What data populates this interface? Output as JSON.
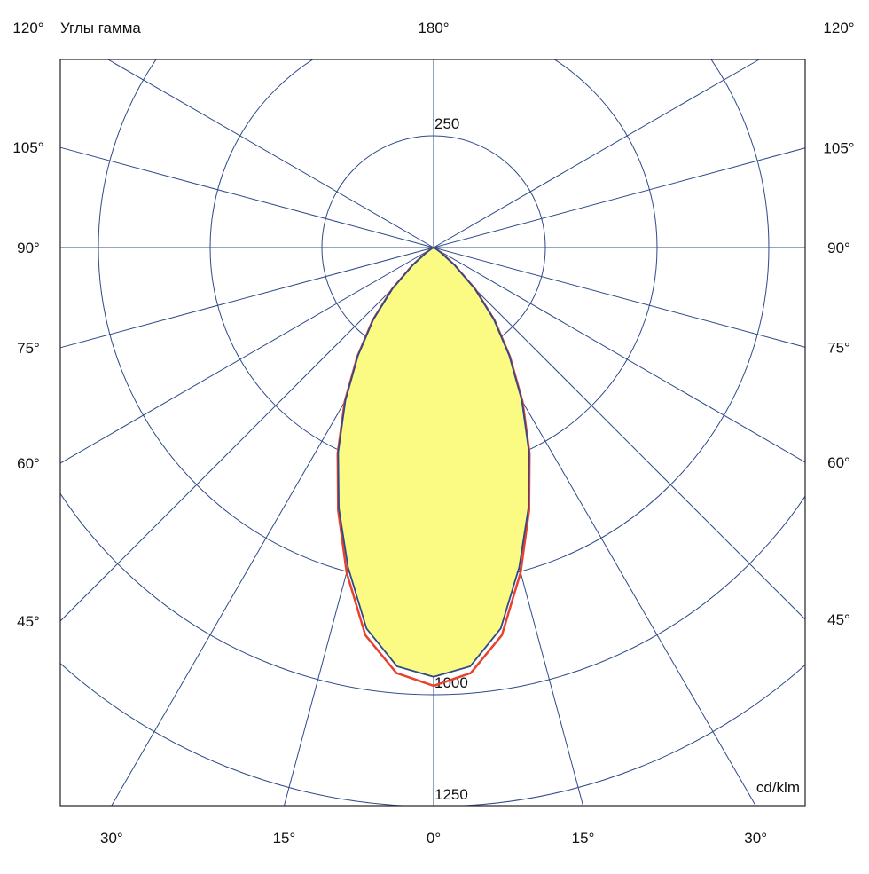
{
  "chart_data": {
    "type": "polar",
    "title": "Углы гамма",
    "unit_label": "cd/klm",
    "x": [
      0,
      5,
      10,
      15,
      20,
      25,
      30,
      35,
      40,
      45,
      50,
      55,
      60,
      65,
      70,
      75,
      80,
      85,
      90
    ],
    "series": [
      {
        "color": "#e8412c",
        "values": [
          980,
          955,
          880,
          752,
          625,
          508,
          398,
          298,
          212,
          132,
          62,
          22,
          6,
          0,
          0,
          0,
          0,
          0,
          0
        ]
      },
      {
        "color": "#2e4a8a",
        "fill": "#fbfb84",
        "values": [
          960,
          940,
          865,
          740,
          620,
          505,
          395,
          295,
          210,
          130,
          60,
          20,
          5,
          0,
          0,
          0,
          0,
          0,
          0
        ]
      }
    ],
    "rlim": [
      0,
      1250
    ],
    "rticks": [
      250,
      500,
      750,
      1000,
      1250
    ],
    "left_angle_ticks": [
      {
        "value": 120,
        "label": "120°"
      },
      {
        "value": 105,
        "label": "105°"
      },
      {
        "value": 90,
        "label": "90°"
      },
      {
        "value": 75,
        "label": "75°"
      },
      {
        "value": 60,
        "label": "60°"
      },
      {
        "value": 45,
        "label": "45°"
      },
      {
        "value": 30,
        "label": "30°"
      },
      {
        "value": 15,
        "label": "15°"
      }
    ],
    "right_angle_ticks": [
      {
        "value": 120,
        "label": "120°"
      },
      {
        "value": 105,
        "label": "105°"
      },
      {
        "value": 90,
        "label": "90°"
      },
      {
        "value": 75,
        "label": "75°"
      },
      {
        "value": 60,
        "label": "60°"
      },
      {
        "value": 45,
        "label": "45°"
      },
      {
        "value": 30,
        "label": "30°"
      },
      {
        "value": 15,
        "label": "15°"
      }
    ],
    "axis_angle_ticks": [
      {
        "value": 180,
        "label": "180°"
      },
      {
        "value": 0,
        "label": "0°"
      }
    ],
    "grid_color": "#2e4a8a"
  }
}
